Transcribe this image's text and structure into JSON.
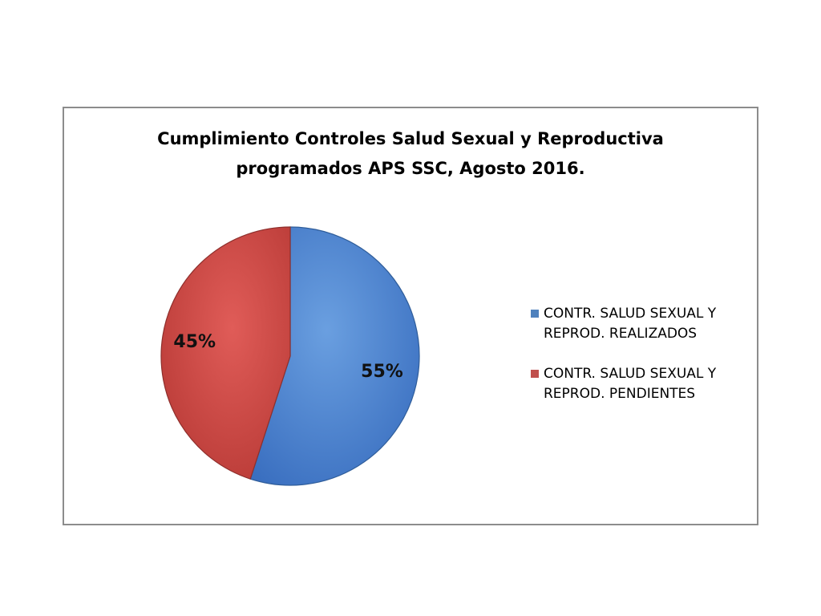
{
  "chart_data": {
    "type": "pie",
    "title": [
      "Cumplimiento Controles Salud Sexual y Reproductiva",
      "programados APS SSC, Agosto 2016."
    ],
    "categories": [
      "CONTR. SALUD SEXUAL Y REPROD. REALIZADOS",
      "CONTR. SALUD SEXUAL Y REPROD. PENDIENTES"
    ],
    "values": [
      55,
      45
    ],
    "value_labels": [
      "55%",
      "45%"
    ],
    "colors": [
      "#4f81bd",
      "#c0504d"
    ]
  }
}
